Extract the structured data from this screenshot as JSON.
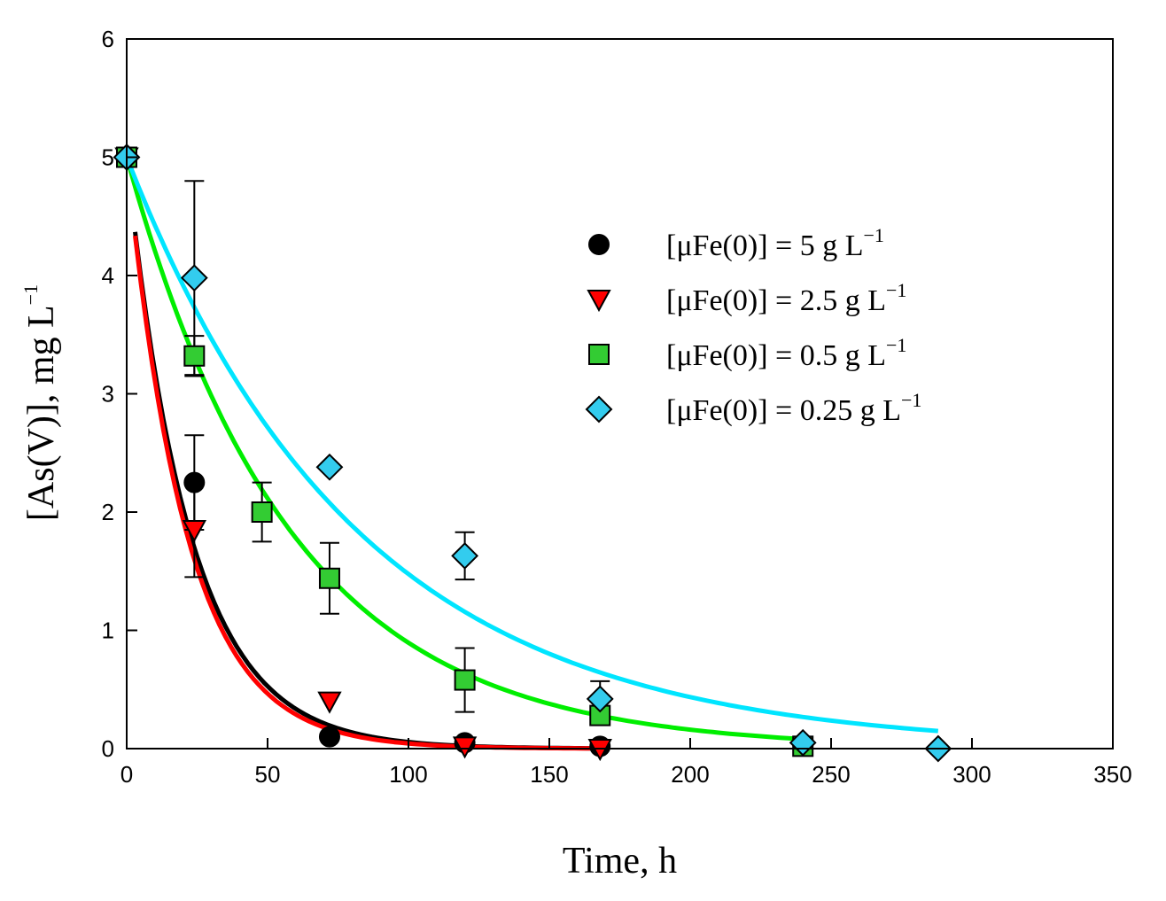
{
  "chart_data": {
    "type": "scatter",
    "xlabel": "Time, h",
    "ylabel_main": "[As(V)], mg L",
    "ylabel_sup": "−1",
    "xlim": [
      0,
      350
    ],
    "ylim": [
      0,
      6
    ],
    "xticks": [
      0,
      50,
      100,
      150,
      200,
      250,
      300,
      350
    ],
    "yticks": [
      0,
      1,
      2,
      3,
      4,
      5,
      6
    ],
    "grid": false,
    "legend_position": "top-right",
    "series": [
      {
        "name": "[μFe(0)] = 5 g L",
        "name_sup": "−1",
        "marker": "circle",
        "color": "#000000",
        "line_color": "#000000",
        "x": [
          0,
          24,
          72,
          120,
          168
        ],
        "y": [
          5.0,
          2.25,
          0.1,
          0.05,
          0.02
        ],
        "err": [
          0,
          0.4,
          0,
          0,
          0
        ],
        "fit_k": 0.045,
        "fit_range": [
          3,
          168
        ]
      },
      {
        "name": "[μFe(0)] = 2.5 g L",
        "name_sup": "−1",
        "marker": "triangle-down",
        "color": "#ff0000",
        "line_color": "#ff0000",
        "x": [
          0,
          24,
          72,
          120,
          168
        ],
        "y": [
          5.0,
          1.85,
          0.4,
          0.02,
          0.0
        ],
        "err": [
          0,
          0.4,
          0,
          0,
          0
        ],
        "fit_k": 0.0475,
        "fit_range": [
          3,
          168
        ]
      },
      {
        "name": "[μFe(0)] = 0.5 g L",
        "name_sup": "−1",
        "marker": "square",
        "color": "#33cc33",
        "line_color": "#00ee00",
        "x": [
          0,
          24,
          48,
          72,
          120,
          168,
          240
        ],
        "y": [
          5.0,
          3.32,
          2.0,
          1.44,
          0.58,
          0.28,
          0.02
        ],
        "err": [
          0,
          0.17,
          0.25,
          0.3,
          0.27,
          0,
          0
        ],
        "fit_k": 0.0172,
        "fit_range": [
          0,
          240
        ]
      },
      {
        "name": "[μFe(0)] = 0.25 g L",
        "name_sup": "−1",
        "marker": "diamond",
        "color": "#33ccee",
        "line_color": "#00e5ff",
        "x": [
          0,
          24,
          72,
          120,
          168,
          240,
          288
        ],
        "y": [
          5.0,
          3.98,
          2.38,
          1.63,
          0.42,
          0.05,
          0.0
        ],
        "err": [
          0,
          0.82,
          0,
          0.2,
          0.15,
          0,
          0
        ],
        "fit_k": 0.0122,
        "fit_range": [
          0,
          288
        ]
      }
    ]
  }
}
